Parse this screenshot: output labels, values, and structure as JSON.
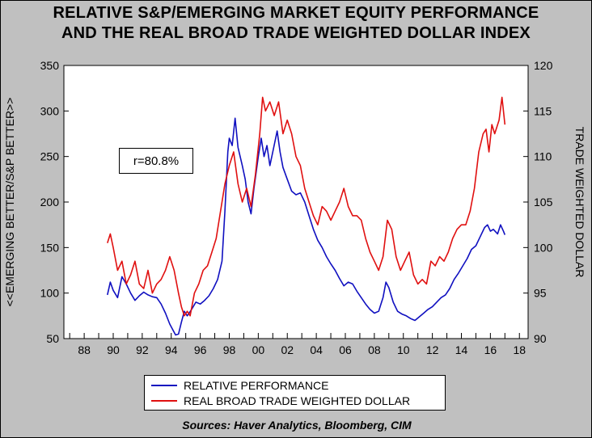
{
  "chart_data": {
    "type": "line",
    "title": "RELATIVE S&P/EMERGING MARKET EQUITY PERFORMANCE",
    "subtitle": "AND THE REAL BROAD TRADE WEIGHTED DOLLAR INDEX",
    "ylabel_left": "<<EMERGING BETTER/S&P BETTER>>",
    "ylabel_right": "TRADE WEIGHTED DOLLAR",
    "xlim": [
      1986.6,
      2018.6
    ],
    "ylim_left": [
      50,
      350
    ],
    "ylim_right": [
      90,
      120
    ],
    "x_ticks": [
      "88",
      "90",
      "92",
      "94",
      "96",
      "98",
      "00",
      "02",
      "04",
      "06",
      "08",
      "10",
      "12",
      "14",
      "16",
      "18"
    ],
    "y_ticks_left": [
      "50",
      "100",
      "150",
      "200",
      "250",
      "300",
      "350"
    ],
    "y_ticks_right": [
      "90",
      "95",
      "100",
      "105",
      "110",
      "115",
      "120"
    ],
    "grid": false,
    "legend_placement": "bottom",
    "annotation": "r=80.8%",
    "source": "Sources:  Haver Analytics, Bloomberg, CIM",
    "series": [
      {
        "name": "RELATIVE PERFORMANCE",
        "color": "#1010c0",
        "axis": "left",
        "points": [
          [
            1989.6,
            98
          ],
          [
            1989.8,
            112
          ],
          [
            1990.0,
            103
          ],
          [
            1990.3,
            95
          ],
          [
            1990.6,
            118
          ],
          [
            1990.9,
            110
          ],
          [
            1991.2,
            100
          ],
          [
            1991.5,
            92
          ],
          [
            1991.8,
            97
          ],
          [
            1992.1,
            101
          ],
          [
            1992.4,
            98
          ],
          [
            1992.7,
            96
          ],
          [
            1993.0,
            95
          ],
          [
            1993.3,
            88
          ],
          [
            1993.6,
            78
          ],
          [
            1993.9,
            66
          ],
          [
            1994.1,
            60
          ],
          [
            1994.3,
            54
          ],
          [
            1994.5,
            55
          ],
          [
            1994.7,
            68
          ],
          [
            1994.9,
            80
          ],
          [
            1995.1,
            75
          ],
          [
            1995.4,
            82
          ],
          [
            1995.7,
            90
          ],
          [
            1996.0,
            88
          ],
          [
            1996.3,
            92
          ],
          [
            1996.6,
            97
          ],
          [
            1996.9,
            105
          ],
          [
            1997.2,
            115
          ],
          [
            1997.5,
            135
          ],
          [
            1997.7,
            190
          ],
          [
            1997.9,
            255
          ],
          [
            1998.0,
            270
          ],
          [
            1998.2,
            262
          ],
          [
            1998.4,
            292
          ],
          [
            1998.6,
            260
          ],
          [
            1998.9,
            240
          ],
          [
            1999.1,
            225
          ],
          [
            1999.3,
            200
          ],
          [
            1999.5,
            187
          ],
          [
            1999.7,
            215
          ],
          [
            2000.0,
            250
          ],
          [
            2000.2,
            270
          ],
          [
            2000.4,
            250
          ],
          [
            2000.6,
            262
          ],
          [
            2000.8,
            240
          ],
          [
            2001.0,
            255
          ],
          [
            2001.3,
            278
          ],
          [
            2001.5,
            255
          ],
          [
            2001.7,
            238
          ],
          [
            2002.0,
            225
          ],
          [
            2002.3,
            212
          ],
          [
            2002.6,
            208
          ],
          [
            2002.9,
            210
          ],
          [
            2003.2,
            200
          ],
          [
            2003.5,
            185
          ],
          [
            2003.8,
            170
          ],
          [
            2004.1,
            158
          ],
          [
            2004.4,
            150
          ],
          [
            2004.7,
            140
          ],
          [
            2005.0,
            132
          ],
          [
            2005.3,
            125
          ],
          [
            2005.6,
            116
          ],
          [
            2005.9,
            108
          ],
          [
            2006.2,
            112
          ],
          [
            2006.5,
            110
          ],
          [
            2006.8,
            102
          ],
          [
            2007.1,
            95
          ],
          [
            2007.4,
            88
          ],
          [
            2007.7,
            82
          ],
          [
            2008.0,
            78
          ],
          [
            2008.3,
            80
          ],
          [
            2008.6,
            95
          ],
          [
            2008.8,
            112
          ],
          [
            2009.0,
            106
          ],
          [
            2009.3,
            90
          ],
          [
            2009.6,
            80
          ],
          [
            2009.9,
            77
          ],
          [
            2010.2,
            75
          ],
          [
            2010.5,
            72
          ],
          [
            2010.8,
            70
          ],
          [
            2011.1,
            74
          ],
          [
            2011.4,
            78
          ],
          [
            2011.7,
            82
          ],
          [
            2012.0,
            85
          ],
          [
            2012.3,
            90
          ],
          [
            2012.6,
            95
          ],
          [
            2012.9,
            98
          ],
          [
            2013.2,
            105
          ],
          [
            2013.5,
            115
          ],
          [
            2013.8,
            122
          ],
          [
            2014.1,
            130
          ],
          [
            2014.4,
            138
          ],
          [
            2014.7,
            148
          ],
          [
            2015.0,
            152
          ],
          [
            2015.3,
            162
          ],
          [
            2015.6,
            172
          ],
          [
            2015.8,
            175
          ],
          [
            2016.0,
            168
          ],
          [
            2016.2,
            170
          ],
          [
            2016.5,
            165
          ],
          [
            2016.7,
            175
          ],
          [
            2016.9,
            168
          ],
          [
            2017.0,
            164
          ]
        ]
      },
      {
        "name": "REAL BROAD TRADE WEIGHTED DOLLAR",
        "color": "#e01010",
        "axis": "right",
        "points": [
          [
            1989.6,
            100.5
          ],
          [
            1989.8,
            101.5
          ],
          [
            1990.0,
            100.0
          ],
          [
            1990.3,
            97.5
          ],
          [
            1990.6,
            98.5
          ],
          [
            1990.9,
            96.0
          ],
          [
            1991.2,
            97.0
          ],
          [
            1991.5,
            98.5
          ],
          [
            1991.8,
            96.0
          ],
          [
            1992.1,
            95.5
          ],
          [
            1992.4,
            97.5
          ],
          [
            1992.7,
            95.0
          ],
          [
            1993.0,
            96.0
          ],
          [
            1993.3,
            96.5
          ],
          [
            1993.6,
            97.5
          ],
          [
            1993.9,
            99.0
          ],
          [
            1994.2,
            97.5
          ],
          [
            1994.5,
            95.0
          ],
          [
            1994.7,
            93.5
          ],
          [
            1994.9,
            92.5
          ],
          [
            1995.1,
            93.0
          ],
          [
            1995.3,
            92.5
          ],
          [
            1995.6,
            95.0
          ],
          [
            1995.9,
            96.0
          ],
          [
            1996.2,
            97.5
          ],
          [
            1996.5,
            98.0
          ],
          [
            1996.8,
            99.5
          ],
          [
            1997.1,
            101.0
          ],
          [
            1997.4,
            104.0
          ],
          [
            1997.7,
            107.0
          ],
          [
            1998.0,
            109.0
          ],
          [
            1998.3,
            110.5
          ],
          [
            1998.6,
            107.0
          ],
          [
            1998.9,
            105.0
          ],
          [
            1999.2,
            106.5
          ],
          [
            1999.5,
            104.5
          ],
          [
            1999.8,
            108.0
          ],
          [
            2000.1,
            112.5
          ],
          [
            2000.3,
            116.5
          ],
          [
            2000.5,
            115.0
          ],
          [
            2000.8,
            116.0
          ],
          [
            2001.1,
            114.5
          ],
          [
            2001.4,
            116.0
          ],
          [
            2001.7,
            112.5
          ],
          [
            2002.0,
            114.0
          ],
          [
            2002.3,
            112.5
          ],
          [
            2002.6,
            110.0
          ],
          [
            2002.9,
            109.0
          ],
          [
            2003.2,
            106.5
          ],
          [
            2003.5,
            105.0
          ],
          [
            2003.8,
            103.5
          ],
          [
            2004.1,
            102.5
          ],
          [
            2004.4,
            104.5
          ],
          [
            2004.7,
            104.0
          ],
          [
            2005.0,
            103.0
          ],
          [
            2005.3,
            104.0
          ],
          [
            2005.6,
            105.0
          ],
          [
            2005.9,
            106.5
          ],
          [
            2006.2,
            104.5
          ],
          [
            2006.5,
            103.5
          ],
          [
            2006.8,
            103.5
          ],
          [
            2007.1,
            103.0
          ],
          [
            2007.4,
            101.0
          ],
          [
            2007.7,
            99.5
          ],
          [
            2008.0,
            98.5
          ],
          [
            2008.3,
            97.5
          ],
          [
            2008.6,
            99.0
          ],
          [
            2008.9,
            103.0
          ],
          [
            2009.2,
            102.0
          ],
          [
            2009.5,
            99.0
          ],
          [
            2009.8,
            97.5
          ],
          [
            2010.1,
            98.5
          ],
          [
            2010.4,
            99.5
          ],
          [
            2010.7,
            97.0
          ],
          [
            2011.0,
            96.0
          ],
          [
            2011.3,
            96.5
          ],
          [
            2011.6,
            96.0
          ],
          [
            2011.9,
            98.5
          ],
          [
            2012.2,
            98.0
          ],
          [
            2012.5,
            99.0
          ],
          [
            2012.8,
            98.5
          ],
          [
            2013.1,
            99.5
          ],
          [
            2013.4,
            101.0
          ],
          [
            2013.7,
            102.0
          ],
          [
            2014.0,
            102.5
          ],
          [
            2014.3,
            102.5
          ],
          [
            2014.6,
            104.0
          ],
          [
            2014.9,
            106.5
          ],
          [
            2015.2,
            110.5
          ],
          [
            2015.5,
            112.5
          ],
          [
            2015.7,
            113.0
          ],
          [
            2015.9,
            110.5
          ],
          [
            2016.1,
            113.5
          ],
          [
            2016.3,
            112.5
          ],
          [
            2016.6,
            114.0
          ],
          [
            2016.8,
            116.5
          ],
          [
            2017.0,
            113.5
          ]
        ]
      }
    ]
  }
}
